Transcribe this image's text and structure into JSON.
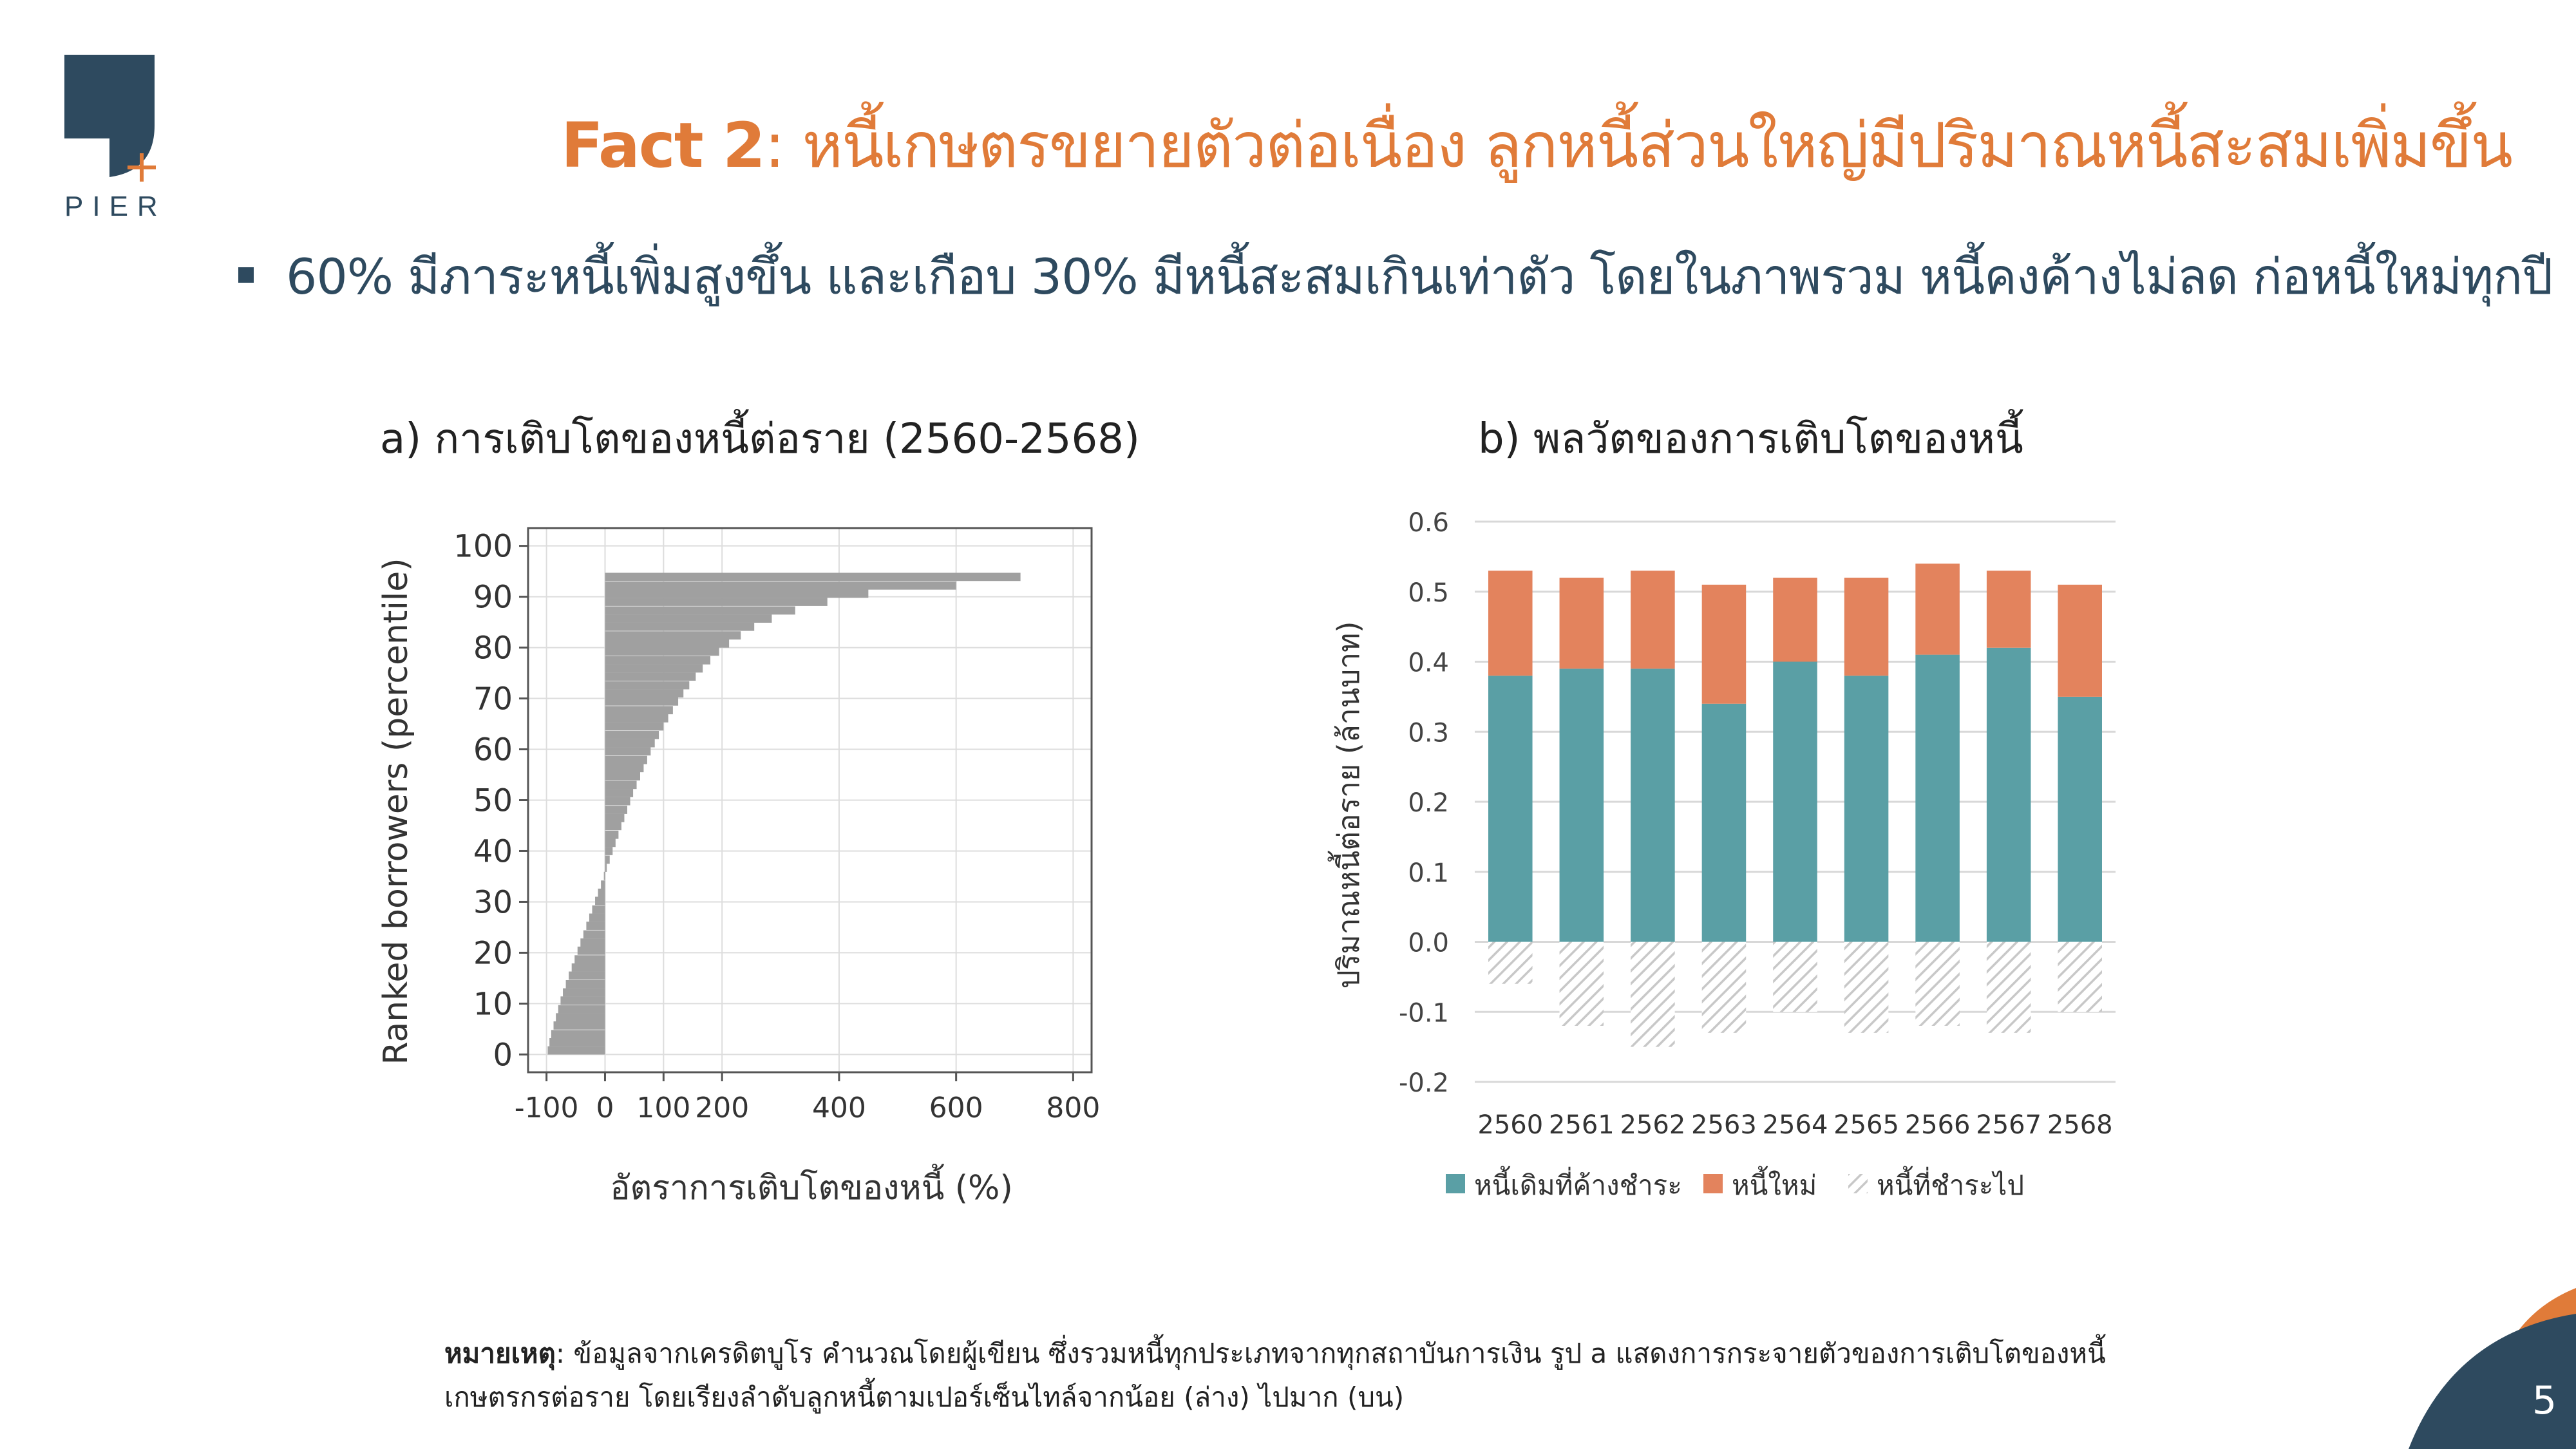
{
  "header": {
    "logo_text": "PIER",
    "title_fact": "Fact 2",
    "title_rest": ": หนี้เกษตรขยายตัวต่อเนื่อง ลูกหนี้ส่วนใหญ่มีปริมาณหนี้สะสมเพิ่มขึ้น"
  },
  "bullet": {
    "text": "60% มีภาระหนี้เพิ่มสูงขึ้น และเกือบ 30% มีหนี้สะสมเกินเท่าตัว โดยในภาพรวม หนี้คงค้างไม่ลด ก่อหนี้ใหม่ทุกปี"
  },
  "colors": {
    "accent": "#E07B39",
    "navy": "#2E4A5F",
    "teal": "#5A9FA5",
    "orange": "#E3835D",
    "gray_bar": "#A0A0A0"
  },
  "chart_data": [
    {
      "type": "bar",
      "orientation": "horizontal",
      "title": "a) การเติบโตของหนี้ต่อราย (2560-2568)",
      "xlabel": "อัตราการเติบโตของหนี้ (%)",
      "ylabel": "Ranked borrowers (percentile)",
      "xlim": [
        -100,
        800
      ],
      "ylim": [
        0,
        100
      ],
      "xticks": [
        "-100",
        "0",
        "100",
        "200",
        "400",
        "600",
        "800"
      ],
      "xtick_values": [
        -100,
        0,
        100,
        200,
        400,
        600,
        800
      ],
      "yticks": [
        "0",
        "10",
        "20",
        "30",
        "40",
        "50",
        "60",
        "70",
        "80",
        "90",
        "100"
      ],
      "ytick_values": [
        0,
        10,
        20,
        30,
        40,
        50,
        60,
        70,
        80,
        90,
        100
      ],
      "grid": true,
      "x": [
        -98,
        -95,
        -92,
        -88,
        -84,
        -80,
        -76,
        -72,
        -67,
        -62,
        -57,
        -52,
        -47,
        -42,
        -37,
        -32,
        -27,
        -22,
        -17,
        -12,
        -7,
        -2,
        3,
        8,
        13,
        18,
        23,
        28,
        33,
        38,
        43,
        48,
        54,
        60,
        66,
        72,
        78,
        85,
        92,
        100,
        108,
        116,
        125,
        134,
        144,
        155,
        167,
        180,
        195,
        212,
        232,
        255,
        285,
        325,
        380,
        450,
        600,
        710
      ],
      "y": [
        0.8,
        2.4,
        4.0,
        5.7,
        7.3,
        8.9,
        10.6,
        12.2,
        13.8,
        15.5,
        17.1,
        18.7,
        20.4,
        22.0,
        23.6,
        25.3,
        26.9,
        28.5,
        30.2,
        31.8,
        33.4,
        35.1,
        36.7,
        38.3,
        40.0,
        41.6,
        43.2,
        44.9,
        46.5,
        48.1,
        49.8,
        51.4,
        53.0,
        54.7,
        56.3,
        57.9,
        59.6,
        61.2,
        62.8,
        64.5,
        66.1,
        67.7,
        69.4,
        71.0,
        72.6,
        74.3,
        75.9,
        77.5,
        79.2,
        80.8,
        82.4,
        84.1,
        85.7,
        87.3,
        89.0,
        90.6,
        92.2,
        93.9
      ]
    },
    {
      "type": "bar",
      "stacked": true,
      "title": "b) พลวัตของการเติบโตของหนี้",
      "ylabel": "ปริมาณหนี้ต่อราย (ล้านบาท)",
      "ylim": [
        -0.2,
        0.6
      ],
      "yticks": [
        "-0.2",
        "-0.1",
        "0.0",
        "0.1",
        "0.2",
        "0.3",
        "0.4",
        "0.5",
        "0.6"
      ],
      "ytick_values": [
        -0.2,
        -0.1,
        0.0,
        0.1,
        0.2,
        0.3,
        0.4,
        0.5,
        0.6
      ],
      "grid": true,
      "legend_position": "bottom",
      "categories": [
        "2560",
        "2561",
        "2562",
        "2563",
        "2564",
        "2565",
        "2566",
        "2567",
        "2568"
      ],
      "series": [
        {
          "name": "หนี้เดิมที่ค้างชำระ",
          "color": "#5A9FA5",
          "pattern": "solid",
          "values": [
            0.38,
            0.39,
            0.39,
            0.34,
            0.4,
            0.38,
            0.41,
            0.42,
            0.35
          ]
        },
        {
          "name": "หนี้ใหม่",
          "color": "#E3835D",
          "pattern": "solid",
          "values": [
            0.15,
            0.13,
            0.14,
            0.17,
            0.12,
            0.14,
            0.13,
            0.11,
            0.16
          ]
        },
        {
          "name": "หนี้ที่ชำระไป",
          "color": "#C8C8C8",
          "pattern": "hatched",
          "values": [
            -0.06,
            -0.12,
            -0.15,
            -0.13,
            -0.1,
            -0.13,
            -0.12,
            -0.13,
            -0.1
          ]
        }
      ]
    }
  ],
  "footnote": {
    "label": "หมายเหตุ",
    "line1": ": ข้อมูลจากเครดิตบูโร คำนวณโดยผู้เขียน ซึ่งรวมหนี้ทุกประเภทจากทุกสถาบันการเงิน รูป a แสดงการกระจายตัวของการเติบโตของหนี้",
    "line2": "เกษตรกรต่อราย โดยเรียงลำดับลูกหนี้ตามเปอร์เซ็นไทล์จากน้อย (ล่าง) ไปมาก (บน)"
  },
  "page_number": "5"
}
